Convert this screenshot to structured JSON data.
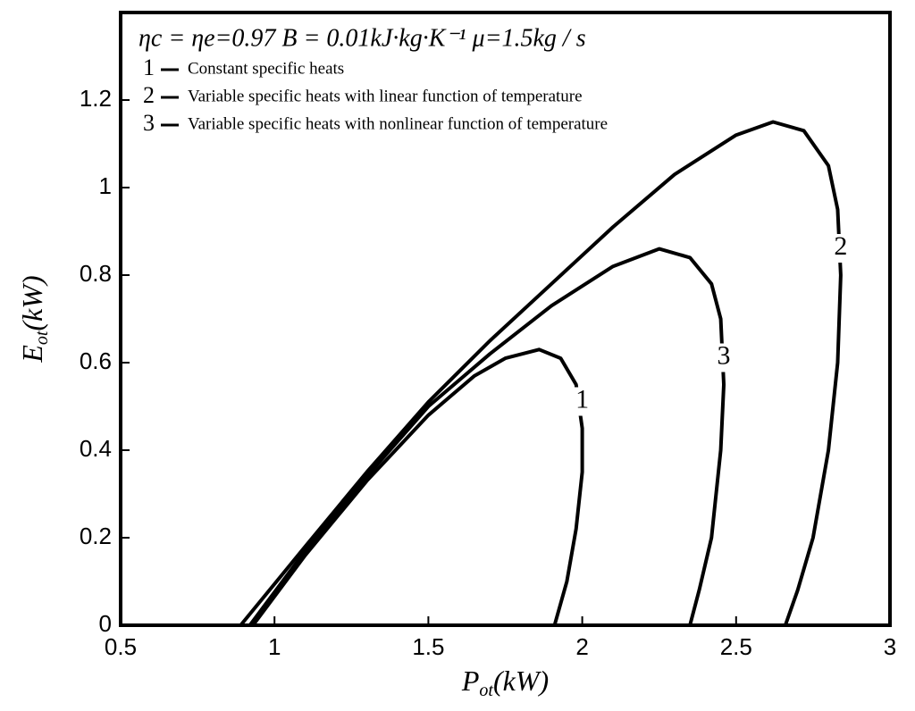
{
  "chart_data": {
    "type": "line",
    "annotation": "ηc = ηe=0.97  B = 0.01kJ·kg·K⁻¹  μ=1.5kg / s",
    "x_label": [
      "P",
      "ot",
      "(kW)"
    ],
    "y_label": [
      "E",
      "ot",
      "(kW)"
    ],
    "xlim": [
      0.5,
      3
    ],
    "xticks": [
      0.5,
      1,
      1.5,
      2,
      2.5,
      3
    ],
    "ylim": [
      0,
      1.4
    ],
    "yticks": [
      0,
      0.2,
      0.4,
      0.6,
      0.8,
      1,
      1.2
    ],
    "series": [
      {
        "name": "1",
        "description": "Constant specific heats",
        "color": "#000000",
        "x": [
          0.93,
          1.1,
          1.3,
          1.5,
          1.65,
          1.75,
          1.86,
          1.93,
          1.98,
          2.0,
          2.0,
          1.98,
          1.95,
          1.91
        ],
        "values": [
          0,
          0.16,
          0.33,
          0.48,
          0.57,
          0.61,
          0.63,
          0.61,
          0.55,
          0.45,
          0.35,
          0.22,
          0.1,
          0
        ]
      },
      {
        "name": "2",
        "description": "Variable specific heats with linear function of temperature",
        "color": "#000000",
        "x": [
          0.89,
          1.1,
          1.3,
          1.5,
          1.7,
          1.9,
          2.1,
          2.3,
          2.5,
          2.62,
          2.72,
          2.8,
          2.83,
          2.84,
          2.83,
          2.8,
          2.75,
          2.7,
          2.66
        ],
        "values": [
          0,
          0.18,
          0.35,
          0.51,
          0.65,
          0.78,
          0.91,
          1.03,
          1.12,
          1.15,
          1.13,
          1.05,
          0.95,
          0.8,
          0.6,
          0.4,
          0.2,
          0.08,
          0
        ]
      },
      {
        "name": "3",
        "description": "Variable specific heats with nonlinear function of temperature",
        "color": "#000000",
        "x": [
          0.92,
          1.1,
          1.3,
          1.5,
          1.7,
          1.9,
          2.1,
          2.25,
          2.35,
          2.42,
          2.45,
          2.46,
          2.45,
          2.42,
          2.38,
          2.35
        ],
        "values": [
          0,
          0.17,
          0.34,
          0.5,
          0.62,
          0.73,
          0.82,
          0.86,
          0.84,
          0.78,
          0.7,
          0.55,
          0.4,
          0.2,
          0.08,
          0
        ]
      }
    ]
  }
}
